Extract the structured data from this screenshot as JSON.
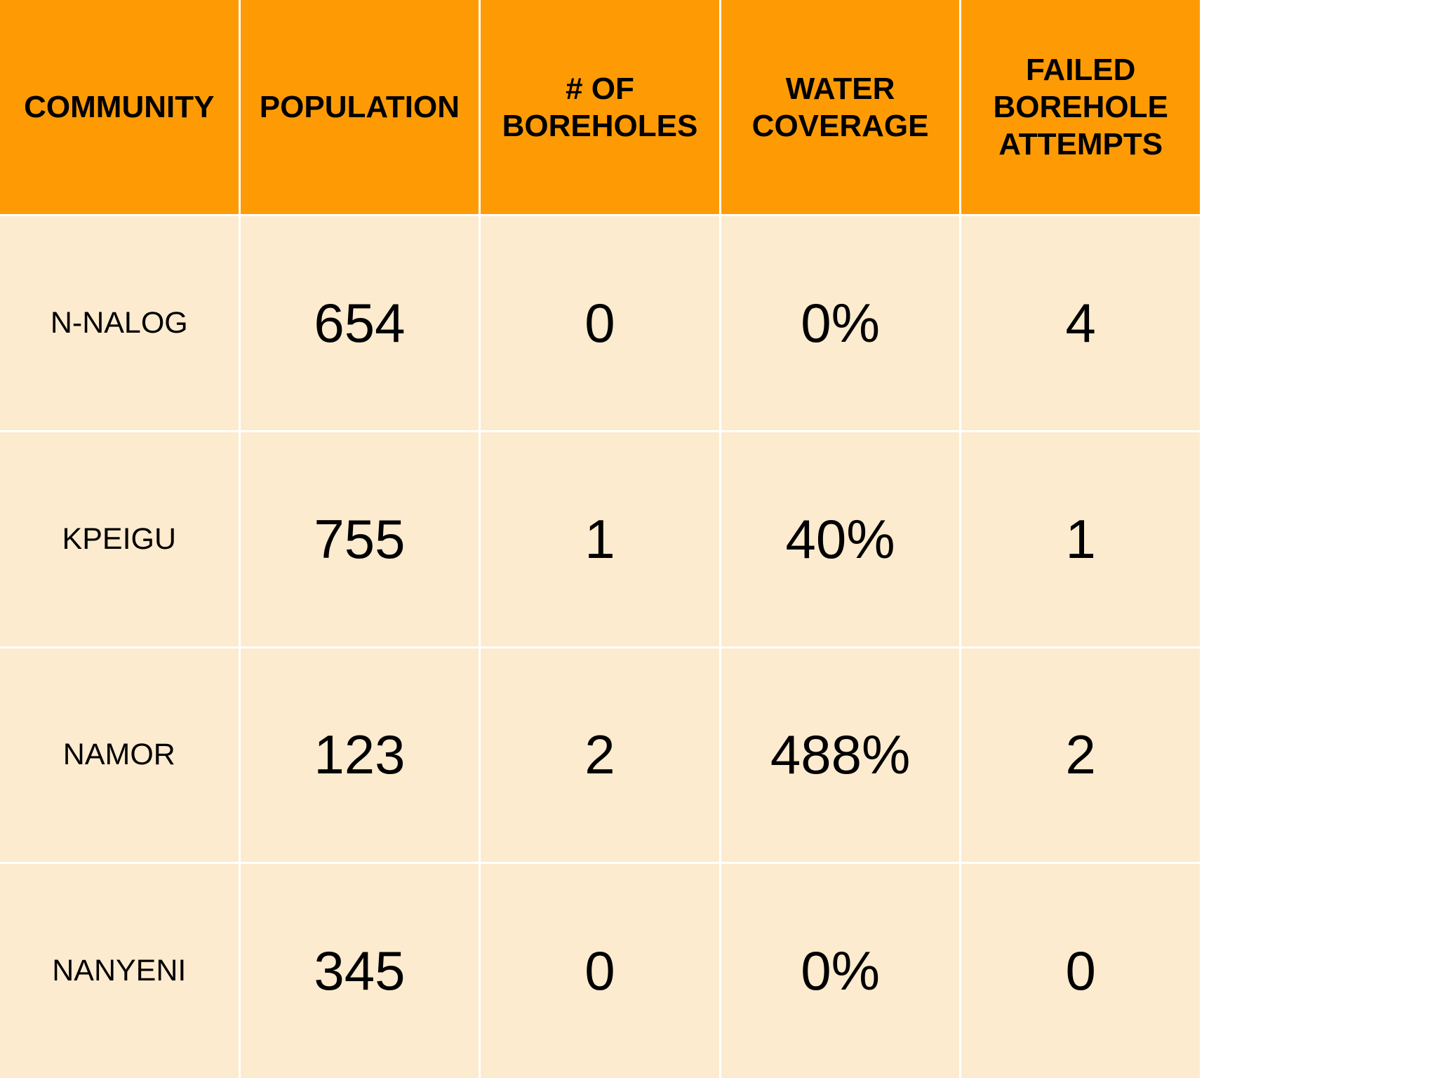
{
  "table": {
    "headers": [
      [
        "COMMUNITY"
      ],
      [
        "POPULATION"
      ],
      [
        "# OF",
        "BOREHOLES"
      ],
      [
        "WATER",
        "COVERAGE"
      ],
      [
        "FAILED",
        "BOREHOLE",
        "ATTEMPTS"
      ]
    ],
    "rows": [
      {
        "community": "N-NALOG",
        "population": "654",
        "boreholes": "0",
        "water_coverage": "0%",
        "failed_attempts": "4"
      },
      {
        "community": "KPEIGU",
        "population": "755",
        "boreholes": "1",
        "water_coverage": "40%",
        "failed_attempts": "1"
      },
      {
        "community": "NAMOR",
        "population": "123",
        "boreholes": "2",
        "water_coverage": "488%",
        "failed_attempts": "2"
      },
      {
        "community": "NANYENI",
        "population": "345",
        "boreholes": "0",
        "water_coverage": "0%",
        "failed_attempts": "0"
      }
    ]
  },
  "colors": {
    "header_background": "#fe9b04",
    "row_background": "#fdebcf",
    "grid_lines": "#ffffff"
  }
}
